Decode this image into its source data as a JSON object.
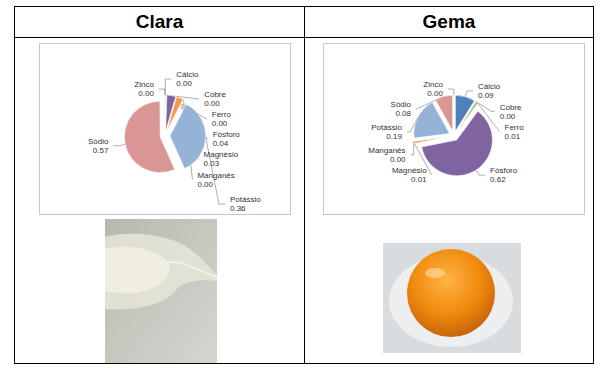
{
  "chart_data": [
    {
      "type": "pie",
      "title": "Clara",
      "categories": [
        "Cálcio",
        "Cobre",
        "Ferro",
        "Fósforo",
        "Magnésio",
        "Manganês",
        "Potássio",
        "Sódio",
        "Zinco"
      ],
      "values": [
        0.002,
        0.001,
        0.002,
        0.04,
        0.03,
        0.001,
        0.36,
        0.57,
        0.001
      ],
      "value_labels": [
        "0.00",
        "0.00",
        "0.00",
        "0.04",
        "0.03",
        "0.00",
        "0.36",
        "0.57",
        "0.00"
      ],
      "colors": [
        "#4f81bd",
        "#c0504d",
        "#9bbb59",
        "#8064a2",
        "#f79646",
        "#4bacc6",
        "#95b3d7",
        "#d99694",
        "#c3d69b"
      ],
      "data_labels": true
    },
    {
      "type": "pie",
      "title": "Gema",
      "categories": [
        "Cálcio",
        "Cobre",
        "Ferro",
        "Fósforo",
        "Magnésio",
        "Manganês",
        "Potássio",
        "Sódio",
        "Zinco"
      ],
      "values": [
        0.09,
        0.001,
        0.01,
        0.62,
        0.01,
        0.001,
        0.19,
        0.08,
        0.001
      ],
      "value_labels": [
        "0.09",
        "0.00",
        "0.01",
        "0.62",
        "0.01",
        "0.00",
        "0.19",
        "0.08",
        "0.00"
      ],
      "colors": [
        "#4f81bd",
        "#c0504d",
        "#9bbb59",
        "#8064a2",
        "#f79646",
        "#4bacc6",
        "#95b3d7",
        "#d99694",
        "#c3d69b"
      ],
      "data_labels": true
    }
  ]
}
